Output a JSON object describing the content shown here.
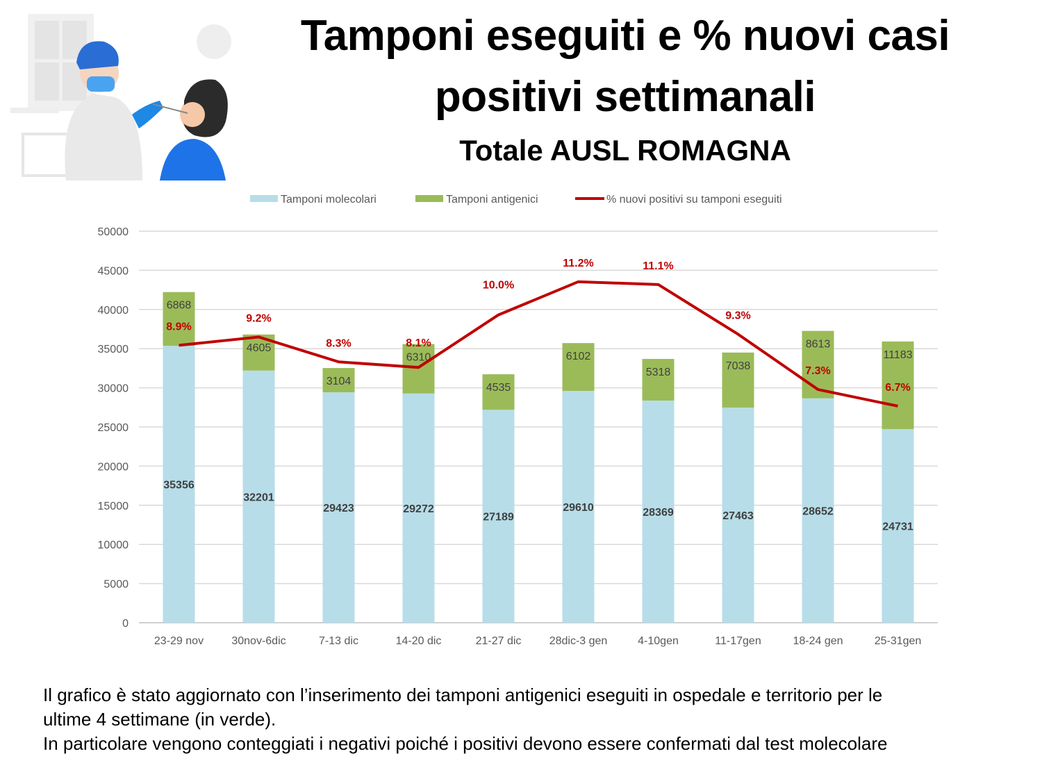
{
  "header": {
    "title_line1": "Tamponi eseguiti e % nuovi casi",
    "title_line2": "positivi settimanali",
    "subtitle": "Totale AUSL ROMAGNA"
  },
  "chart_data": {
    "type": "bar",
    "stacked": true,
    "categories": [
      "23-29 nov",
      "30nov-6dic",
      "7-13 dic",
      "14-20 dic",
      "21-27 dic",
      "28dic-3 gen",
      "4-10gen",
      "11-17gen",
      "18-24 gen",
      "25-31gen"
    ],
    "series": [
      {
        "name": "Tamponi molecolari",
        "type": "bar",
        "color": "#b7dde8",
        "values": [
          35356,
          32201,
          29423,
          29272,
          27189,
          29610,
          28369,
          27463,
          28652,
          24731
        ]
      },
      {
        "name": "Tamponi antigenici",
        "type": "bar",
        "color": "#9bbb59",
        "values": [
          6868,
          4605,
          3104,
          6310,
          4535,
          6102,
          5318,
          7038,
          8613,
          11183
        ]
      },
      {
        "name": "% nuovi positivi su tamponi eseguiti",
        "type": "line",
        "color": "#c00000",
        "values": [
          8.9,
          9.2,
          8.3,
          8.1,
          10.0,
          11.2,
          11.1,
          9.3,
          7.3,
          6.7
        ],
        "labels": [
          "8.9%",
          "9.2%",
          "8.3%",
          "8.1%",
          "10.0%",
          "11.2%",
          "11.1%",
          "9.3%",
          "7.3%",
          "6.7%"
        ]
      }
    ],
    "ylim": [
      0,
      50000
    ],
    "yticks": [
      0,
      5000,
      10000,
      15000,
      20000,
      25000,
      30000,
      35000,
      40000,
      45000,
      50000
    ],
    "secondary_ylim": [
      -1.14,
      13.03
    ],
    "grid": true,
    "legend": "top",
    "title": "",
    "xlabel": "",
    "ylabel": ""
  },
  "footnote": {
    "line1": "Il grafico è stato aggiornato con l’inserimento dei tamponi antigenici eseguiti in ospedale e territorio per le",
    "line2": "ultime 4 settimane (in verde).",
    "line3": "In particolare vengono conteggiati i negativi poiché i positivi devono essere confermati dal test molecolare"
  }
}
